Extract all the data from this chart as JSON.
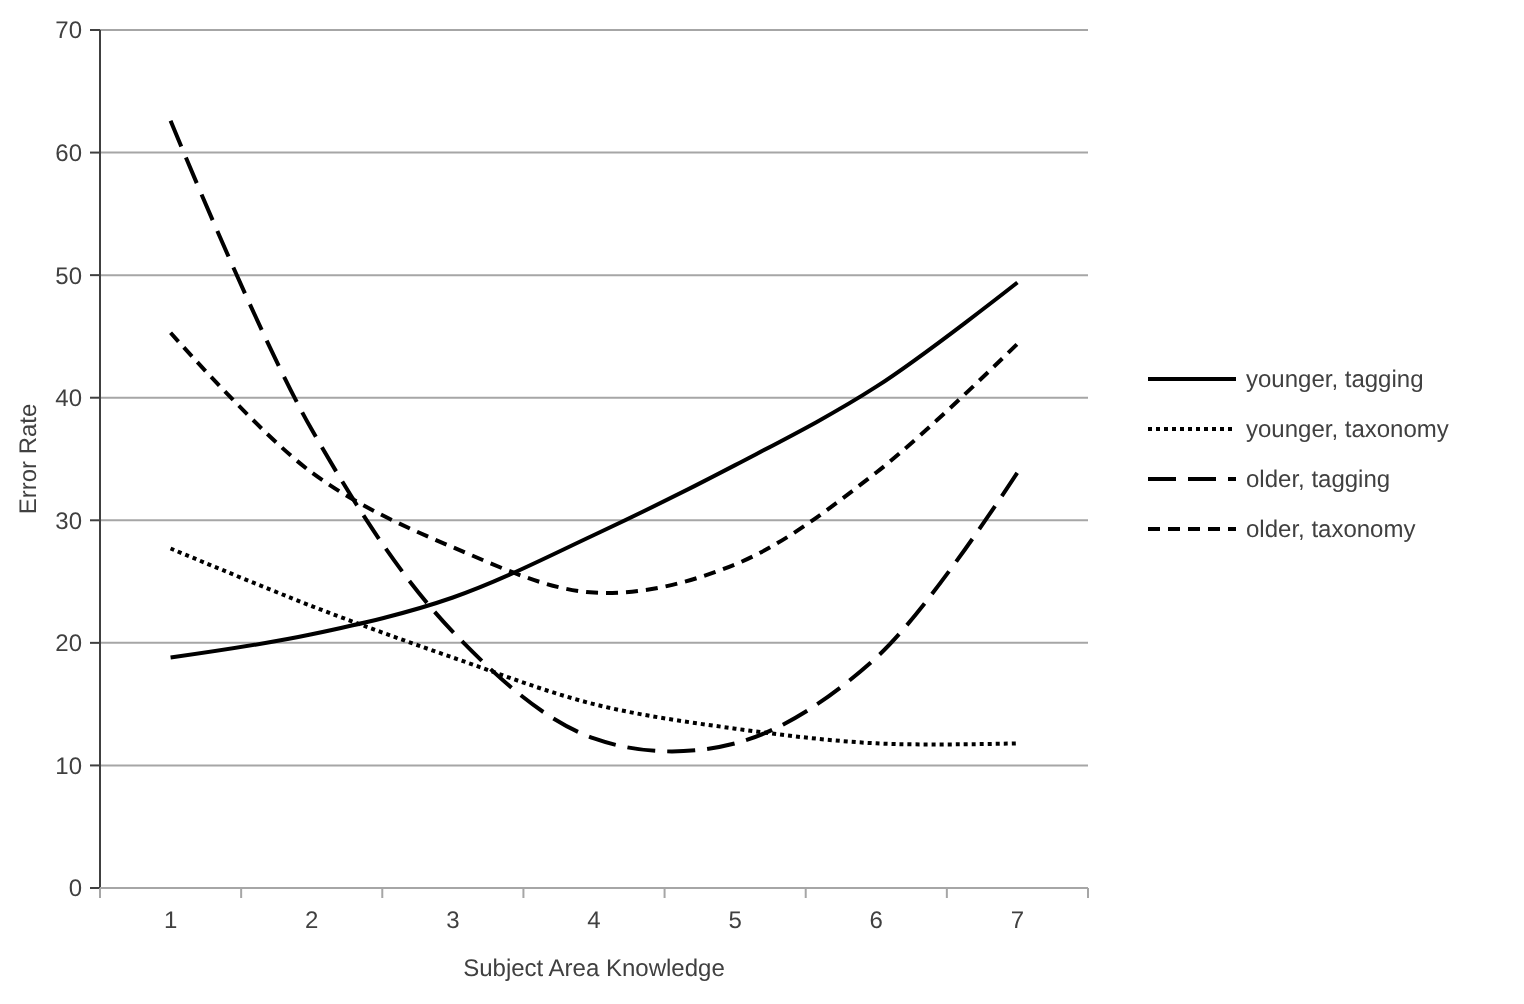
{
  "chart_data": {
    "type": "line",
    "xlabel": "Subject Area Knowledge",
    "ylabel": "Error Rate",
    "categories": [
      "1",
      "2",
      "3",
      "4",
      "5",
      "6",
      "7"
    ],
    "ylim": [
      0,
      70
    ],
    "yticks": [
      0,
      10,
      20,
      30,
      40,
      50,
      60,
      70
    ],
    "grid": "y",
    "legend": "right",
    "marker": "none",
    "series": [
      {
        "name": "younger, tagging",
        "color": "#000000",
        "line_style": "solid",
        "values": [
          18.8,
          20.7,
          23.7,
          28.8,
          34.5,
          40.9,
          49.4
        ]
      },
      {
        "name": "younger, taxonomy",
        "color": "#000000",
        "line_style": "dotted",
        "values": [
          27.7,
          23.0,
          18.8,
          15.0,
          13.0,
          11.8,
          11.8
        ]
      },
      {
        "name": "older, tagging",
        "color": "#000000",
        "line_style": "longdash",
        "values": [
          62.6,
          37.4,
          20.9,
          12.2,
          11.8,
          18.8,
          33.9
        ]
      },
      {
        "name": "older, taxonomy",
        "color": "#000000",
        "line_style": "dashed",
        "values": [
          45.3,
          33.9,
          27.8,
          24.1,
          26.4,
          33.9,
          44.4
        ]
      }
    ]
  }
}
